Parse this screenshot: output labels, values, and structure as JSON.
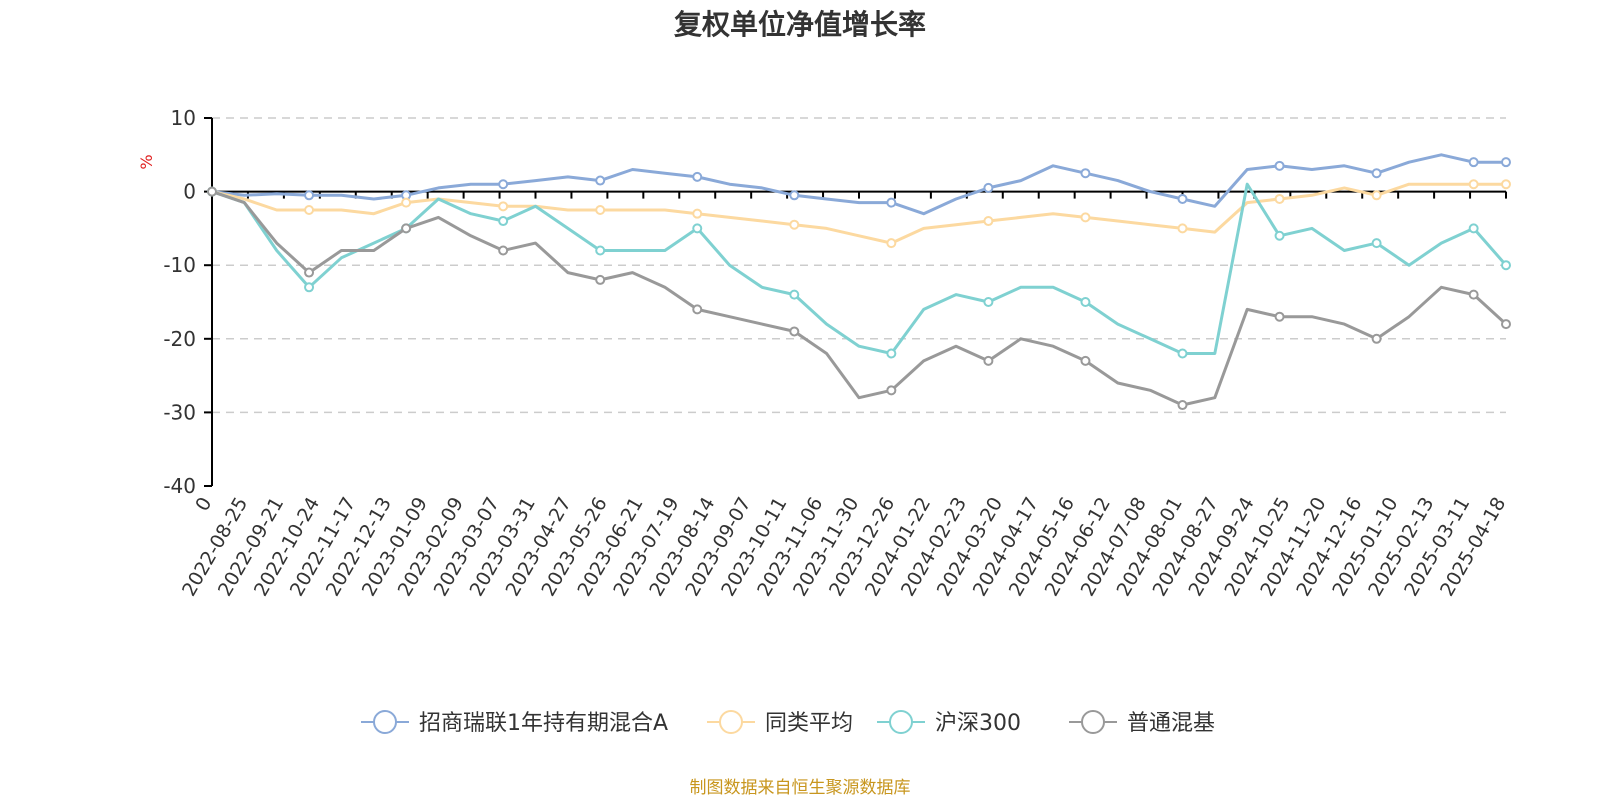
{
  "chart_data": {
    "type": "line",
    "title": "复权单位净值增长率",
    "ylabel": "%",
    "ylim": [
      -40,
      10
    ],
    "yticks": [
      "10",
      "0",
      "-10",
      "-20",
      "-30",
      "-40"
    ],
    "xtick_labels": [
      "0",
      "2022-08-25",
      "2022-09-21",
      "2022-10-24",
      "2022-11-17",
      "2022-12-13",
      "2023-01-09",
      "2023-02-09",
      "2023-03-07",
      "2023-03-31",
      "2023-04-27",
      "2023-05-26",
      "2023-06-21",
      "2023-07-19",
      "2023-08-14",
      "2023-09-07",
      "2023-10-11",
      "2023-11-06",
      "2023-11-30",
      "2023-12-26",
      "2024-01-22",
      "2024-02-23",
      "2024-03-20",
      "2024-04-17",
      "2024-05-16",
      "2024-06-12",
      "2024-07-08",
      "2024-08-01",
      "2024-08-27",
      "2024-09-24",
      "2024-10-25",
      "2024-11-20",
      "2024-12-16",
      "2025-01-10",
      "2025-02-13",
      "2025-03-11",
      "2025-04-18"
    ],
    "series": [
      {
        "name": "招商瑞联1年持有期混合A",
        "color": "#8aa9d8",
        "values": [
          0,
          -0.5,
          -0.3,
          -0.5,
          -0.5,
          -1,
          -0.5,
          0.5,
          1,
          1,
          1.5,
          2,
          1.5,
          3,
          2.5,
          2,
          1,
          0.5,
          -0.5,
          -1,
          -1.5,
          -1.5,
          -3,
          -1,
          0.5,
          1.5,
          3.5,
          2.5,
          1.5,
          0,
          -1,
          -2,
          3,
          3.5,
          3,
          3.5,
          2.5,
          4,
          5,
          4,
          4
        ]
      },
      {
        "name": "同类平均",
        "color": "#fcd9a0",
        "values": [
          0,
          -1,
          -2.5,
          -2.5,
          -2.5,
          -3,
          -1.5,
          -1,
          -1.5,
          -2,
          -2,
          -2.5,
          -2.5,
          -2.5,
          -2.5,
          -3,
          -3.5,
          -4,
          -4.5,
          -5,
          -6,
          -7,
          -5,
          -4.5,
          -4,
          -3.5,
          -3,
          -3.5,
          -4,
          -4.5,
          -5,
          -5.5,
          -1.5,
          -1,
          -0.5,
          0.5,
          -0.5,
          1,
          1,
          1,
          1
        ]
      },
      {
        "name": "沪深300",
        "color": "#7fd1d1",
        "values": [
          0,
          -1.5,
          -8,
          -13,
          -9,
          -7,
          -5,
          -1,
          -3,
          -4,
          -2,
          -5,
          -8,
          -8,
          -8,
          -5,
          -10,
          -13,
          -14,
          -18,
          -21,
          -22,
          -16,
          -14,
          -15,
          -13,
          -13,
          -15,
          -18,
          -20,
          -22,
          -22,
          1,
          -6,
          -5,
          -8,
          -7,
          -10,
          -7,
          -5,
          -10
        ]
      },
      {
        "name": "普通混基",
        "color": "#999999",
        "values": [
          0,
          -1.5,
          -7,
          -11,
          -8,
          -8,
          -5,
          -3.5,
          -6,
          -8,
          -7,
          -11,
          -12,
          -11,
          -13,
          -16,
          -17,
          -18,
          -19,
          -22,
          -28,
          -27,
          -23,
          -21,
          -23,
          -20,
          -21,
          -23,
          -26,
          -27,
          -29,
          -28,
          -16,
          -17,
          -17,
          -18,
          -20,
          -17,
          -13,
          -14,
          -18
        ]
      }
    ],
    "legend_position": "bottom-center"
  },
  "source_note": "制图数据来自恒生聚源数据库"
}
